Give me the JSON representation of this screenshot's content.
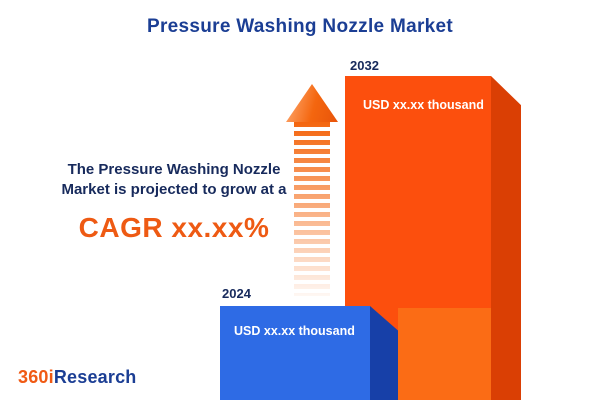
{
  "header": {
    "title": "Pressure Washing Nozzle Market"
  },
  "annotation": {
    "line1": "The Pressure Washing Nozzle",
    "line2": "Market is projected to grow at a",
    "cagr": "CAGR xx.xx%"
  },
  "bars": [
    {
      "year": "2024",
      "value": "USD xx.xx thousand"
    },
    {
      "year": "2032",
      "value": "USD xx.xx thousand"
    }
  ],
  "logo": {
    "prefix": "360i",
    "suffix": "Research"
  },
  "colors": {
    "navy": "#1B3E94",
    "accent_orange": "#EE5A13",
    "bar_2024_front": "#2E6BE5",
    "bar_2024_side": "#1740A8",
    "bar_2032_front": "#FC4F0D",
    "bar_2032_side": "#DA3F04"
  },
  "chart_data": {
    "type": "bar",
    "categories": [
      "2024",
      "2032"
    ],
    "values": [
      null,
      null
    ],
    "value_labels": [
      "USD xx.xx thousand",
      "USD xx.xx thousand"
    ],
    "title": "Pressure Washing Nozzle Market",
    "annotation": "The Pressure Washing Nozzle Market is projected to grow at a CAGR xx.xx%",
    "legend_position": "none",
    "grid": false,
    "series_colors": [
      "#2E6BE5",
      "#FC4F0D"
    ]
  }
}
